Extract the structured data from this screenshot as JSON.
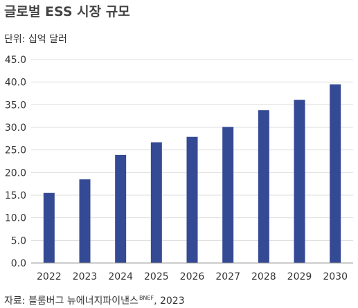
{
  "title": "글로벌 ESS 시장 규모",
  "unit_label": "단위: 십억 달러",
  "source": {
    "prefix": "자료: 블룸버그 뉴에너지파이낸스",
    "sup": "BNEF",
    "suffix": ", 2023"
  },
  "colors": {
    "bar": "#354a94",
    "axis": "#999999",
    "grid": "#dcdcdc"
  },
  "chart_data": {
    "type": "bar",
    "title": "글로벌 ESS 시장 규모",
    "ylabel": "단위: 십억 달러",
    "xlabel": "",
    "categories": [
      "2022",
      "2023",
      "2024",
      "2025",
      "2026",
      "2027",
      "2028",
      "2029",
      "2030"
    ],
    "values": [
      15.5,
      18.5,
      23.9,
      26.7,
      27.9,
      30.1,
      33.8,
      36.1,
      39.5
    ],
    "ylim": [
      0,
      45
    ],
    "yticks": [
      "0.0",
      "5.0",
      "10.0",
      "15.0",
      "20.0",
      "25.0",
      "30.0",
      "35.0",
      "40.0",
      "45.0"
    ],
    "grid": true
  }
}
